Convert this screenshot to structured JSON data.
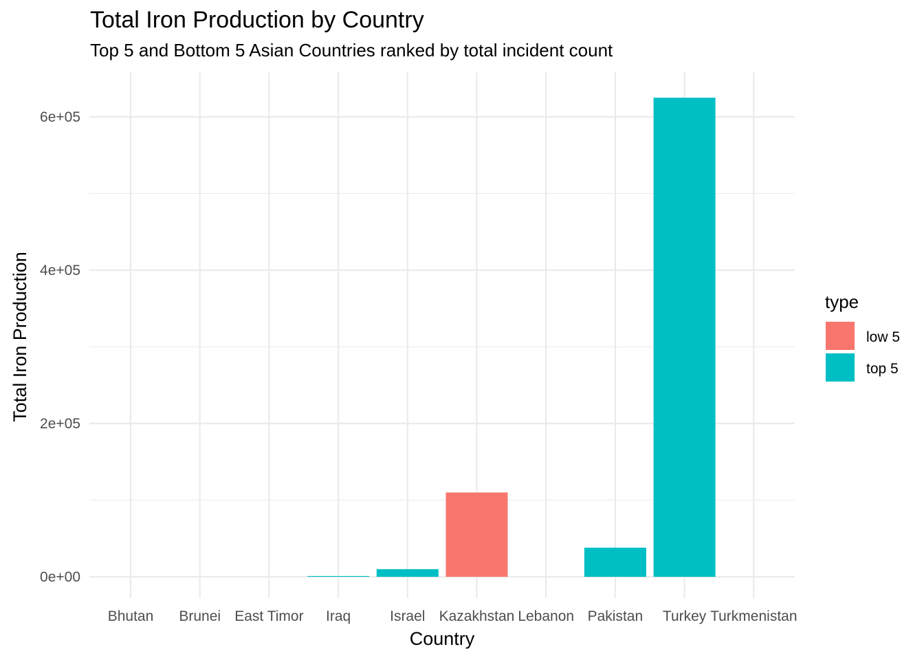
{
  "chart_data": {
    "type": "bar",
    "title": "Total Iron Production by Country",
    "subtitle": "Top 5 and Bottom 5 Asian Countries ranked by total incident count",
    "xlabel": "Country",
    "ylabel": "Total Iron Production",
    "categories": [
      "Bhutan",
      "Brunei",
      "East Timor",
      "Iraq",
      "Israel",
      "Kazakhstan",
      "Lebanon",
      "Pakistan",
      "Turkey",
      "Turkmenistan"
    ],
    "values": [
      0,
      0,
      0,
      1000,
      10000,
      110000,
      0,
      38000,
      625000,
      0
    ],
    "bar_type": [
      "low 5",
      "low 5",
      "low 5",
      "top 5",
      "top 5",
      "low 5",
      "low 5",
      "top 5",
      "top 5",
      "low 5"
    ],
    "ylim": [
      -26000,
      655000
    ],
    "y_ticks": [
      0,
      200000,
      400000,
      600000
    ],
    "y_tick_labels": [
      "0e+00",
      "2e+05",
      "4e+05",
      "6e+05"
    ],
    "grid": true,
    "legend": {
      "title": "type",
      "position": "right",
      "entries": [
        {
          "name": "low 5",
          "color": "#F8766D"
        },
        {
          "name": "top 5",
          "color": "#00BFC4"
        }
      ]
    },
    "colors": {
      "low 5": "#F8766D",
      "top 5": "#00BFC4",
      "grid": "#EBEBEB"
    }
  }
}
